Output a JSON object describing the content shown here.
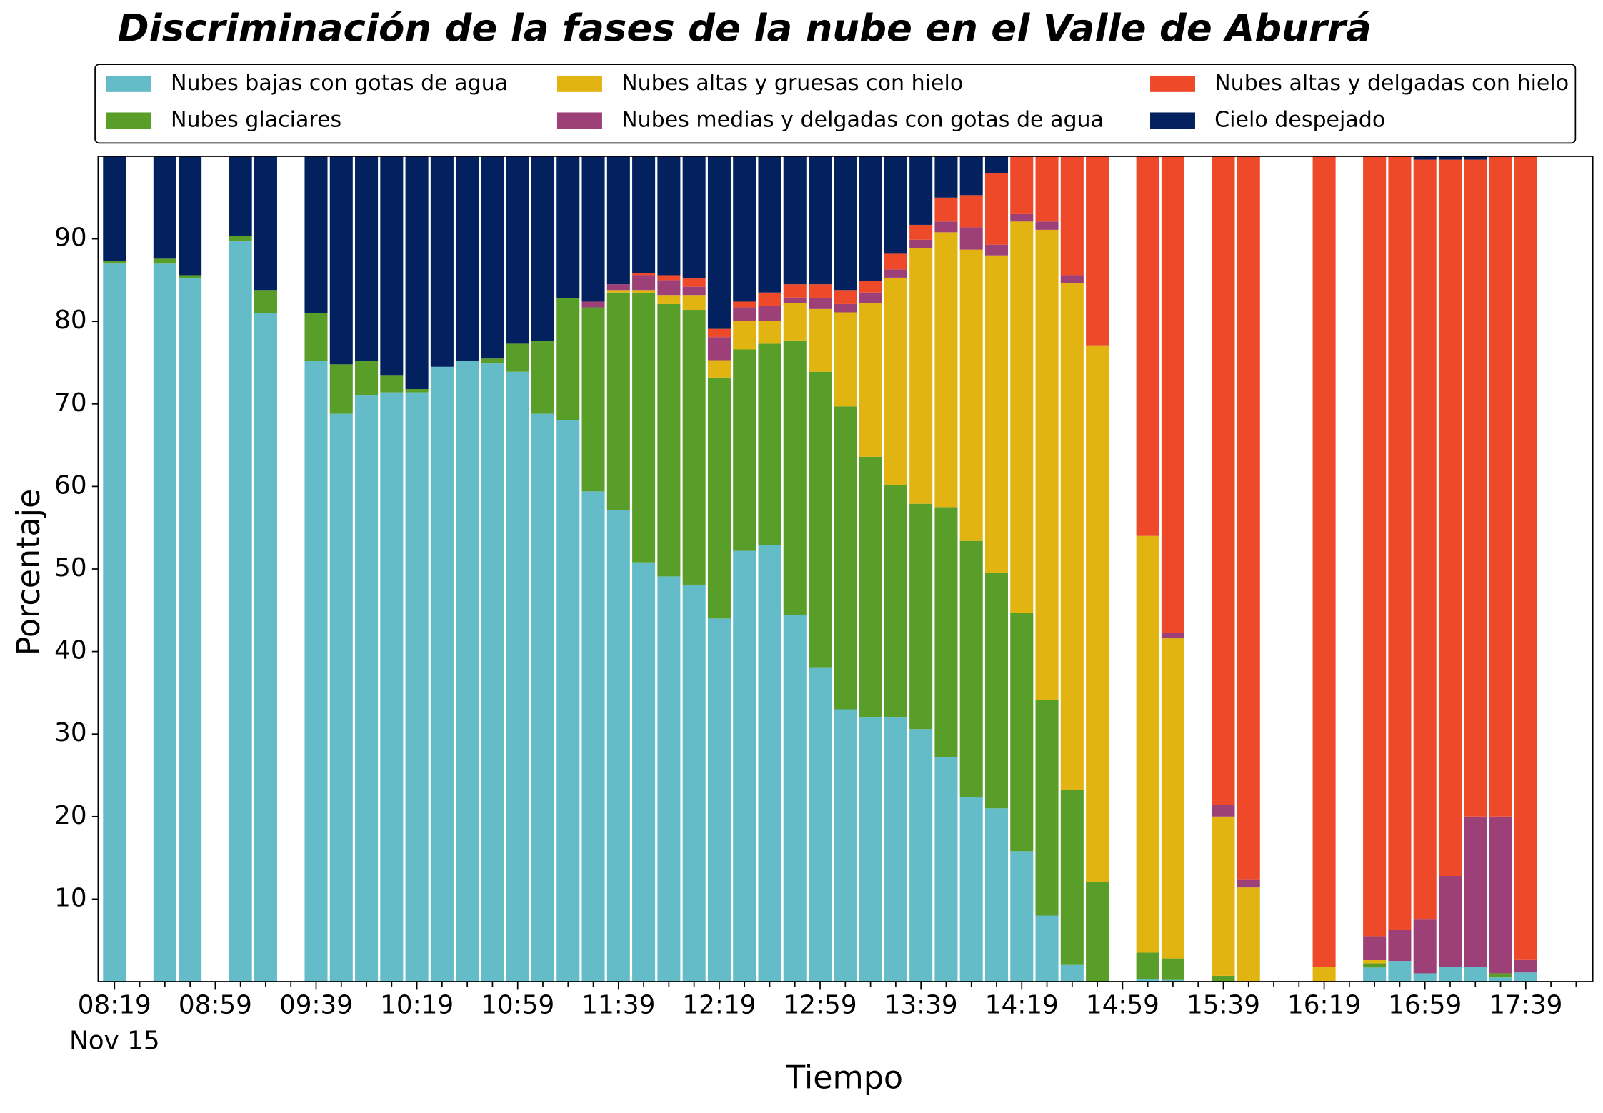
{
  "chart_data": {
    "type": "stacked_bar",
    "title": "Discriminación de la fases de la nube en el Valle de Aburrá",
    "x_label": "Tiempo",
    "y_label": "Porcentaje",
    "date_label": "Nov 15",
    "categories": [
      "08:19",
      null,
      null,
      null,
      "08:59",
      null,
      null,
      null,
      "09:39",
      null,
      null,
      null,
      "10:19",
      null,
      null,
      null,
      "10:59",
      null,
      null,
      null,
      "11:39",
      null,
      null,
      null,
      "12:19",
      null,
      null,
      null,
      "12:59",
      null,
      null,
      null,
      "13:39",
      null,
      null,
      null,
      "14:19",
      null,
      null,
      null,
      "14:59",
      null,
      null,
      null,
      "15:39",
      null,
      null,
      null,
      "16:19",
      null,
      null,
      null,
      "16:59",
      null,
      null,
      null,
      "17:39",
      null,
      null
    ],
    "ylim": [
      0,
      100
    ],
    "yticks": [
      10,
      20,
      30,
      40,
      50,
      60,
      70,
      80,
      90
    ],
    "legend": "top",
    "series": [
      {
        "name": "Nubes bajas con gotas de agua",
        "color": "#64bcc8",
        "values": [
          87,
          null,
          87,
          85.2,
          null,
          89.7,
          81,
          null,
          75.2,
          68.8,
          71.1,
          71.4,
          71.4,
          74.5,
          75.2,
          74.9,
          73.9,
          68.8,
          68,
          59.4,
          57.1,
          50.8,
          49.1,
          48.1,
          44,
          52.2,
          52.9,
          44.4,
          38.1,
          33,
          32,
          32,
          30.6,
          27.2,
          22.4,
          21,
          15.8,
          8,
          2.1,
          0,
          null,
          0.3,
          0.2,
          null,
          0,
          0,
          null,
          null,
          0,
          null,
          1.7,
          2.5,
          1,
          1.8,
          1.8,
          0.5,
          1.1,
          null,
          null
        ]
      },
      {
        "name": "Nubes glaciares",
        "color": "#5a9e2a",
        "values": [
          0.3,
          null,
          0.6,
          0.4,
          null,
          0.7,
          2.8,
          null,
          5.8,
          6,
          4.1,
          2.1,
          0.4,
          0,
          0,
          0.6,
          3.4,
          8.8,
          14.8,
          22.3,
          26.4,
          32.6,
          33,
          33.3,
          29.2,
          24.4,
          24.4,
          33.3,
          35.8,
          36.7,
          31.6,
          28.2,
          27.3,
          30.3,
          31,
          28.5,
          28.9,
          26.1,
          21.1,
          12.1,
          null,
          3.2,
          2.6,
          null,
          0.7,
          0,
          null,
          null,
          0,
          null,
          0.5,
          0,
          0,
          0,
          0,
          0.5,
          0,
          null,
          null
        ]
      },
      {
        "name": "Nubes altas y gruesas con hielo",
        "color": "#e2b412",
        "values": [
          0,
          null,
          0,
          0,
          null,
          0,
          0,
          null,
          0,
          0,
          0,
          0,
          0,
          0,
          0,
          0,
          0,
          0,
          0,
          0,
          0.3,
          0.4,
          1.1,
          1.8,
          2.1,
          3.5,
          2.8,
          4.5,
          7.6,
          11.4,
          18.6,
          25.1,
          31,
          33.3,
          35.3,
          38.5,
          47.4,
          57,
          61.4,
          65,
          null,
          50.5,
          38.8,
          null,
          19.3,
          11.4,
          null,
          null,
          1.8,
          null,
          0.4,
          0,
          0,
          0,
          0,
          0,
          0,
          null,
          null
        ]
      },
      {
        "name": "Nubes medias y delgadas con gotas de agua",
        "color": "#9e4078",
        "values": [
          0,
          null,
          0,
          0,
          null,
          0,
          0,
          null,
          0,
          0,
          0,
          0,
          0,
          0,
          0,
          0,
          0,
          0,
          0,
          0.7,
          0.7,
          1.8,
          1.8,
          1,
          2.8,
          1.6,
          1.8,
          0.7,
          1.3,
          1,
          1.3,
          1,
          1,
          1.3,
          2.7,
          1.3,
          0.9,
          1,
          1,
          0,
          null,
          0,
          0.7,
          null,
          1.4,
          1,
          null,
          null,
          0,
          null,
          2.9,
          3.8,
          6.6,
          11,
          18.2,
          19,
          1.6,
          null,
          null
        ]
      },
      {
        "name": "Nubes altas y delgadas con hielo",
        "color": "#ee4a2a",
        "values": [
          0,
          null,
          0,
          0,
          null,
          0,
          0,
          null,
          0,
          0,
          0,
          0,
          0,
          0,
          0,
          0,
          0,
          0,
          0,
          0,
          0,
          0.3,
          0.6,
          1,
          1,
          0.7,
          1.6,
          1.6,
          1.7,
          1.7,
          1.4,
          1.9,
          1.8,
          2.9,
          3.9,
          8.7,
          7,
          7.9,
          14.4,
          22.9,
          null,
          46,
          57.7,
          null,
          78.6,
          87.6,
          null,
          null,
          98.2,
          null,
          94.5,
          93.7,
          92,
          86.8,
          79.6,
          80,
          97.3,
          null,
          null
        ]
      },
      {
        "name": "Cielo despejado",
        "color": "#02215e",
        "values": [
          12.7,
          null,
          12.4,
          14.4,
          null,
          9.6,
          16.2,
          null,
          19,
          25.2,
          24.8,
          26.5,
          28.2,
          25.5,
          24.8,
          24.5,
          22.7,
          22.4,
          17.2,
          17.6,
          15.5,
          14.1,
          14.4,
          14.8,
          20.9,
          17.6,
          16.5,
          15.5,
          15.5,
          16.2,
          15.1,
          11.8,
          8.3,
          5,
          4.7,
          2,
          0,
          0,
          0,
          0,
          null,
          0,
          0,
          null,
          0,
          0,
          null,
          null,
          0,
          null,
          0,
          0,
          0.4,
          0.4,
          0.4,
          0,
          0,
          null,
          null
        ]
      }
    ]
  }
}
